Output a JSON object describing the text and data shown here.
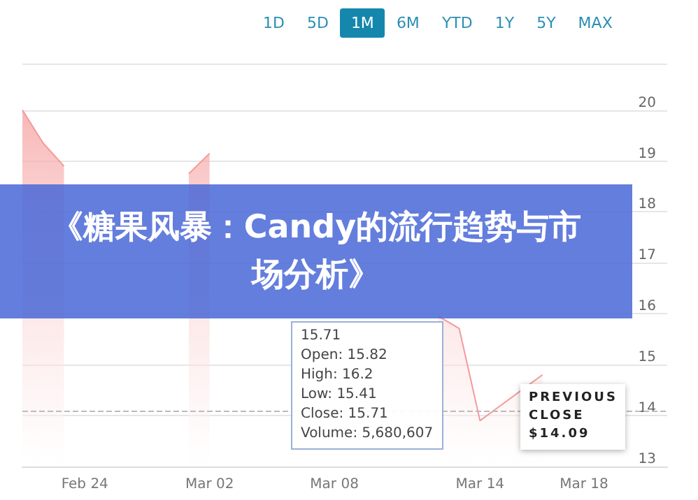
{
  "chart_data": {
    "type": "area",
    "title": "《糖果风暴：Candy的流行趋势与市场分析》",
    "categories": [
      null,
      null,
      null,
      "Feb 24",
      null,
      null,
      null,
      null,
      null,
      "Mar 02",
      null,
      null,
      null,
      null,
      null,
      "Mar 08",
      null,
      null,
      null,
      null,
      null,
      null,
      "Mar 14",
      null,
      null,
      null,
      null,
      "Mar 18",
      null,
      null,
      null,
      null
    ],
    "series": [
      {
        "color": "#f59a9a",
        "values": [
          20.0,
          19.35,
          18.9,
          null,
          null,
          null,
          null,
          null,
          18.75,
          19.15,
          null,
          null,
          null,
          null,
          null,
          null,
          null,
          null,
          null,
          null,
          15.95,
          15.71,
          13.9,
          14.2,
          14.5,
          14.8,
          null,
          null,
          null,
          null,
          null,
          null
        ]
      }
    ],
    "ylim": [
      13,
      20.9
    ],
    "yticks": [
      13,
      14,
      15,
      16,
      17,
      18,
      19,
      20
    ],
    "grid": "y",
    "marker": "none",
    "ref_lines": [
      {
        "axis": "y",
        "value": 14.09,
        "label": "PREVIOUS\nCLOSE\n$14.09",
        "line_style": "dashed",
        "color": "#bbbbbb"
      }
    ],
    "annotations": [
      "1D",
      "5D",
      "1M",
      "6M",
      "YTD",
      "1Y",
      "5Y",
      "MAX",
      "15.71\nOpen: 15.82\nHigh: 16.2\nLow: 15.41\nClose: 15.71\nVolume: 5,680,607"
    ]
  }
}
